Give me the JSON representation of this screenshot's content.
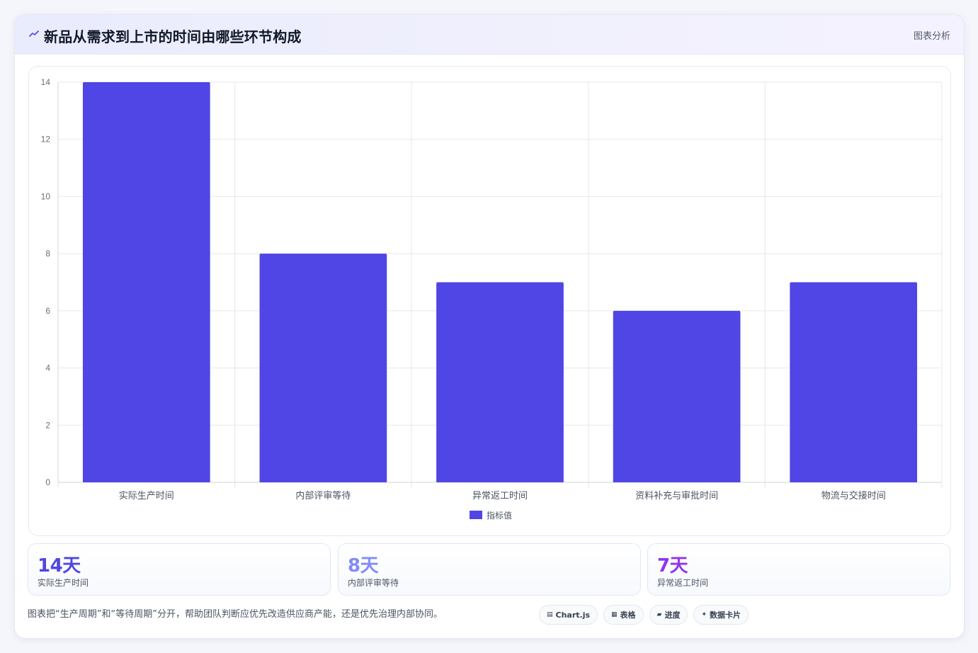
{
  "header": {
    "icon": "trend-line-icon",
    "title": "新品从需求到上市的时间由哪些环节构成",
    "tag": "图表分析"
  },
  "chart_data": {
    "type": "bar",
    "categories": [
      "实际生产时间",
      "内部评审等待",
      "异常返工时间",
      "资料补充与审批时间",
      "物流与交接时间"
    ],
    "series": [
      {
        "name": "指标值",
        "values": [
          14,
          8,
          7,
          6,
          7
        ],
        "color": "#4f46e5"
      }
    ],
    "ylim": [
      0,
      14
    ],
    "yticks": [
      0,
      2,
      4,
      6,
      8,
      10,
      12,
      14
    ],
    "grid": true,
    "legend": "bottom"
  },
  "stats": [
    {
      "value": "14天",
      "label": "实际生产时间",
      "color": "#4f46e5"
    },
    {
      "value": "8天",
      "label": "内部评审等待",
      "color": "#818cf8"
    },
    {
      "value": "7天",
      "label": "异常返工时间",
      "color": "#9333ea"
    }
  ],
  "footnote": "图表把“生产周期”和“等待周期”分开，帮助团队判断应优先改造供应商产能，还是优先治理内部协同。",
  "chips": [
    {
      "icon": "chart-icon",
      "glyph": "▤",
      "label": "Chart.js"
    },
    {
      "icon": "table-icon",
      "glyph": "▦",
      "label": "表格"
    },
    {
      "icon": "progress-icon",
      "glyph": "▰",
      "label": "进度"
    },
    {
      "icon": "sparkle-icon",
      "glyph": "✦",
      "label": "数据卡片"
    }
  ]
}
